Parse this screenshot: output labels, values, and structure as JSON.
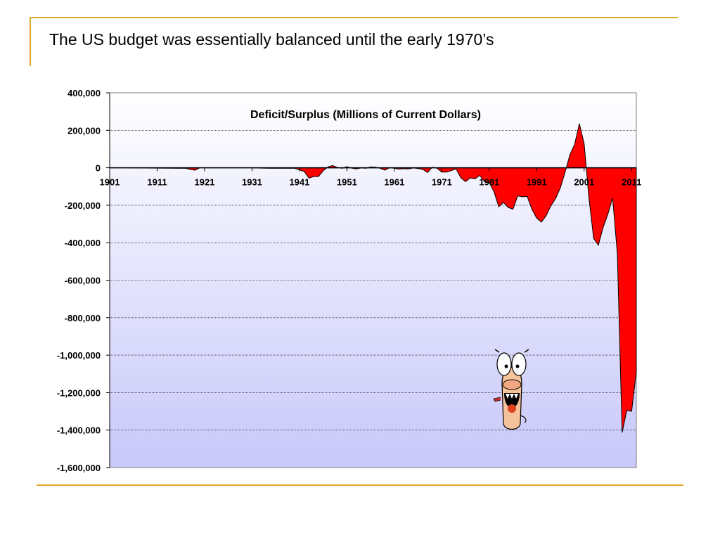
{
  "slide": {
    "title": "The US budget was essentially balanced until the early 1970’s"
  },
  "colors": {
    "accent_rule": "#e0a82b",
    "area_fill": "#ff0000",
    "plot_bg_top": "#ffffff",
    "plot_bg_bottom": "#c8c8fa"
  },
  "mascot": {
    "icon": "cartoon-face-icon"
  },
  "chart_data": {
    "type": "area",
    "title": "Deficit/Surplus (Millions of Current Dollars)",
    "xlabel": "",
    "ylabel": "",
    "xlim": [
      1901,
      2012
    ],
    "ylim": [
      -1600000,
      400000
    ],
    "x_ticks": [
      "1901",
      "1911",
      "1921",
      "1931",
      "1941",
      "1951",
      "1961",
      "1971",
      "1981",
      "1991",
      "2001",
      "2011"
    ],
    "y_ticks": [
      {
        "value": 400000,
        "label": "400,000"
      },
      {
        "value": 200000,
        "label": "200,000"
      },
      {
        "value": 0,
        "label": "0"
      },
      {
        "value": -200000,
        "label": "-200,000"
      },
      {
        "value": -400000,
        "label": "-400,000"
      },
      {
        "value": -600000,
        "label": "-600,000"
      },
      {
        "value": -800000,
        "label": "-800,000"
      },
      {
        "value": -1000000,
        "label": "-1,000,000"
      },
      {
        "value": -1200000,
        "label": "-1,200,000"
      },
      {
        "value": -1400000,
        "label": "-1,400,000"
      },
      {
        "value": -1600000,
        "label": "-1,600,000"
      }
    ],
    "grid": true,
    "series": [
      {
        "x": [
          1901,
          1917,
          1918,
          1919,
          1920,
          1930,
          1935,
          1940,
          1942,
          1943,
          1944,
          1945,
          1946,
          1947,
          1948,
          1949,
          1950,
          1951,
          1952,
          1953,
          1954,
          1955,
          1956,
          1957,
          1958,
          1959,
          1960,
          1961,
          1962,
          1963,
          1964,
          1965,
          1966,
          1967,
          1968,
          1969,
          1970,
          1971,
          1972,
          1973,
          1974,
          1975,
          1976,
          1977,
          1978,
          1979,
          1980,
          1981,
          1982,
          1983,
          1984,
          1985,
          1986,
          1987,
          1988,
          1989,
          1990,
          1991,
          1992,
          1993,
          1994,
          1995,
          1996,
          1997,
          1998,
          1999,
          2000,
          2001,
          2002,
          2003,
          2004,
          2005,
          2006,
          2007,
          2008,
          2009,
          2010,
          2011,
          2012
        ],
        "values": [
          0,
          -3000,
          -9000,
          -13000,
          0,
          0,
          -3000,
          -3000,
          -20000,
          -55000,
          -47000,
          -47000,
          -16000,
          4000,
          12000,
          1000,
          -3000,
          6000,
          -2000,
          -6000,
          -1000,
          -3000,
          4000,
          3000,
          -3000,
          -13000,
          0,
          -3000,
          -7000,
          -5000,
          -6000,
          -1000,
          -4000,
          -9000,
          -25000,
          3000,
          -3000,
          -23000,
          -23000,
          -15000,
          -6000,
          -53000,
          -74000,
          -54000,
          -59000,
          -41000,
          -74000,
          -79000,
          -128000,
          -208000,
          -185000,
          -212000,
          -221000,
          -150000,
          -155000,
          -153000,
          -221000,
          -269000,
          -290000,
          -255000,
          -203000,
          -164000,
          -107000,
          -22000,
          69000,
          126000,
          236000,
          128000,
          -158000,
          -378000,
          -413000,
          -318000,
          -248000,
          -161000,
          -459000,
          -1413000,
          -1294000,
          -1300000,
          -1087000
        ]
      }
    ]
  }
}
